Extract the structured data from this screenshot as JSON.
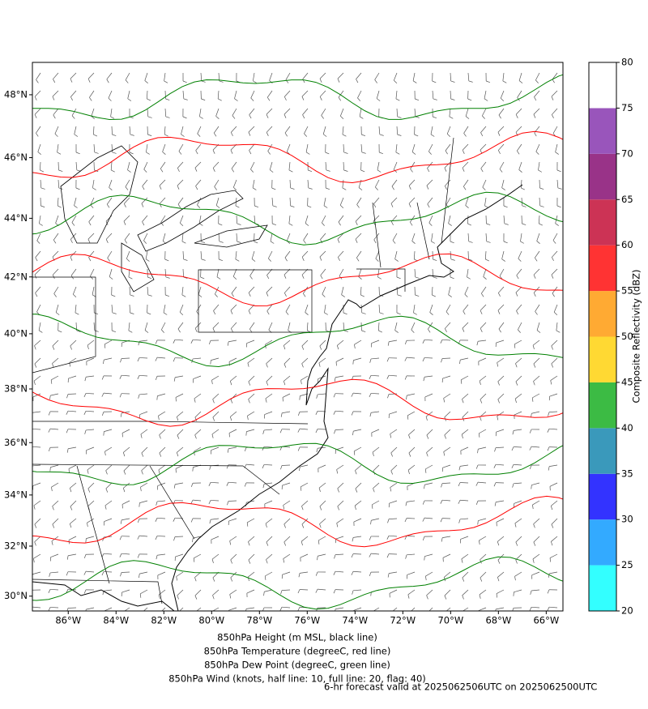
{
  "map": {
    "xlim": [
      -87.5,
      -65.3
    ],
    "ylim": [
      29.4,
      49.0
    ],
    "xticks": [
      {
        "value": -86,
        "label": "86°W"
      },
      {
        "value": -84,
        "label": "84°W"
      },
      {
        "value": -82,
        "label": "82°W"
      },
      {
        "value": -80,
        "label": "80°W"
      },
      {
        "value": -78,
        "label": "78°W"
      },
      {
        "value": -76,
        "label": "76°W"
      },
      {
        "value": -74,
        "label": "74°W"
      },
      {
        "value": -72,
        "label": "72°W"
      },
      {
        "value": -70,
        "label": "70°W"
      },
      {
        "value": -68,
        "label": "68°W"
      },
      {
        "value": -66,
        "label": "66°W"
      }
    ],
    "yticks": [
      {
        "value": 48,
        "label": "48°N"
      },
      {
        "value": 46,
        "label": "46°N"
      },
      {
        "value": 44,
        "label": "44°N"
      },
      {
        "value": 42,
        "label": "42°N"
      },
      {
        "value": 40,
        "label": "40°N"
      },
      {
        "value": 38,
        "label": "38°N"
      },
      {
        "value": 36,
        "label": "36°N"
      },
      {
        "value": 34,
        "label": "34°N"
      },
      {
        "value": 32,
        "label": "32°N"
      },
      {
        "value": 30,
        "label": "30°N"
      }
    ],
    "colorbar": {
      "label": "Composite Reflectivity (dBZ)",
      "lim": [
        20,
        80
      ],
      "ticks": [
        20,
        25,
        30,
        35,
        40,
        45,
        50,
        55,
        60,
        65,
        70,
        75,
        80
      ],
      "colors": [
        "#33ffff",
        "#33aaff",
        "#3333ff",
        "#3a99bb",
        "#3cbb44",
        "#ffd933",
        "#ffaa33",
        "#ff3333",
        "#cc3355",
        "#993388",
        "#9955bb",
        "#ffffff"
      ]
    },
    "captions": [
      {
        "text": "850hPa Height (m MSL, black line)",
        "color": "#000000"
      },
      {
        "text": "850hPa Temperature (degreeC, red line)",
        "color": "#ff0000"
      },
      {
        "text": "850hPa Dew Point (degreeC, green line)",
        "color": "#008000"
      },
      {
        "text": "850hPa Wind (knots, half line: 10, full line: 20, flag: 40)",
        "color": "#808080"
      }
    ],
    "forecast": {
      "text": "6-hr forecast valid at 2025062506UTC on 2025062500UTC",
      "color": "#ff0000"
    }
  }
}
